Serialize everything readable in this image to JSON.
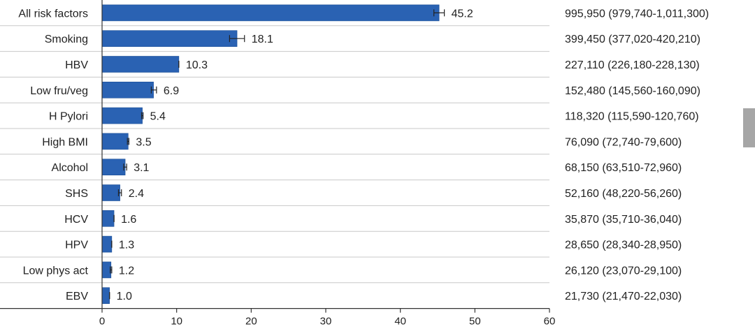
{
  "chart_data": {
    "type": "bar",
    "orientation": "horizontal",
    "categories": [
      "All risk factors",
      "Smoking",
      "HBV",
      "Low fru/veg",
      "H Pylori",
      "High BMI",
      "Alcohol",
      "SHS",
      "HCV",
      "HPV",
      "Low phys act",
      "EBV"
    ],
    "values": [
      45.2,
      18.1,
      10.3,
      6.9,
      5.4,
      3.5,
      3.1,
      2.4,
      1.6,
      1.3,
      1.2,
      1.0
    ],
    "value_labels": [
      "45.2",
      "18.1",
      "10.3",
      "6.9",
      "5.4",
      "3.5",
      "3.1",
      "2.4",
      "1.6",
      "1.3",
      "1.2",
      "1.0"
    ],
    "error_low": [
      44.5,
      17.1,
      10.3,
      6.6,
      5.3,
      3.4,
      2.9,
      2.2,
      1.6,
      1.3,
      1.1,
      1.0
    ],
    "error_high": [
      45.9,
      19.1,
      10.3,
      7.3,
      5.5,
      3.6,
      3.3,
      2.6,
      1.6,
      1.3,
      1.3,
      1.0
    ],
    "right_labels": [
      "995,950 (979,740-1,011,300)",
      "399,450 (377,020-420,210)",
      "227,110 (226,180-228,130)",
      "152,480 (145,560-160,090)",
      "118,320 (115,590-120,760)",
      "76,090 (72,740-79,600)",
      "68,150 (63,510-72,960)",
      "52,160 (48,220-56,260)",
      "35,870 (35,710-36,040)",
      "28,650 (28,340-28,950)",
      "26,120 (23,070-29,100)",
      "21,730 (21,470-22,030)"
    ],
    "xticks": [
      "0",
      "10",
      "20",
      "30",
      "40",
      "50",
      "60"
    ],
    "xlim": [
      0,
      60
    ],
    "bar_color": "#2a62b3",
    "grid": "horizontal row separators",
    "title": "",
    "xlabel": "",
    "ylabel": ""
  }
}
